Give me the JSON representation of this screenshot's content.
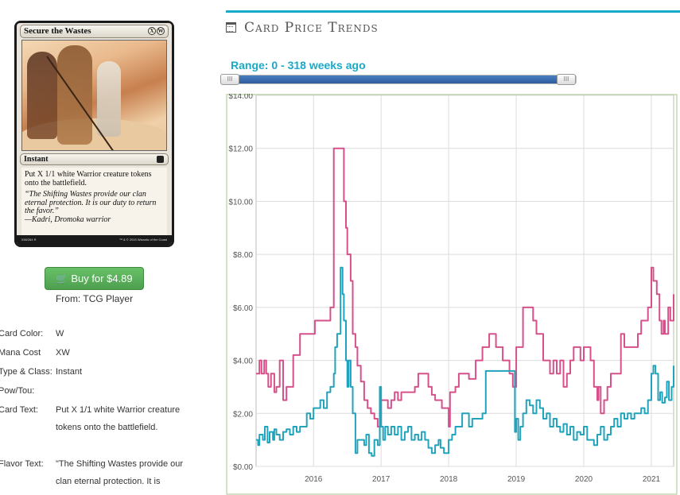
{
  "card": {
    "name": "Secure the Wastes",
    "mana_symbols": [
      "X",
      "W"
    ],
    "type_line": "Instant",
    "rules_text": "Put X 1/1 white Warrior creature tokens onto the battlefield.",
    "flavor_text": "“The Shifting Wastes provide our clan eternal protection. It is our duty to return the favor.”",
    "flavor_attribution": "—Kadri, Dromoka warrior",
    "collector_number": "036/264 R",
    "copyright": "™ & © 2015 Wizards of the Coast"
  },
  "buy": {
    "label": "Buy for $4.89",
    "from": "From: TCG Player"
  },
  "details": [
    {
      "label": "Card Color:",
      "value": "W"
    },
    {
      "label": "Mana Cost",
      "value": "XW"
    },
    {
      "label": "Type & Class:",
      "value": "Instant"
    },
    {
      "label": "Pow/Tou:",
      "value": ""
    },
    {
      "label": "Card Text:",
      "value": "Put X 1/1 white Warrior creature tokens onto the battlefield."
    },
    {
      "label": "Flavor Text:",
      "value": "\"The Shifting Wastes provide our clan eternal protection. It is"
    }
  ],
  "panel": {
    "title": "Card Price Trends",
    "title_icon": "calendar-icon",
    "range_label": "Range: 0 - 318 weeks ago",
    "slider_handle_glyph": "III",
    "slider": {
      "start_weeks": 0,
      "end_weeks": 318
    }
  },
  "colors": {
    "accent": "#1aa9c7",
    "buy_green": "#5cb85c",
    "series_pink": "#d6508a",
    "series_teal": "#21a3bc"
  },
  "chart_data": {
    "type": "line",
    "xlabel": "",
    "ylabel": "",
    "xlim": [
      2015.15,
      2021.33
    ],
    "ylim": [
      0,
      14
    ],
    "x_ticks": [
      "2016",
      "2017",
      "2018",
      "2019",
      "2020",
      "2021"
    ],
    "y_ticks": [
      "$0.00",
      "$2.00",
      "$4.00",
      "$6.00",
      "$8.00",
      "$10.00",
      "$12.00",
      "$14.00"
    ],
    "grid": true,
    "series": [
      {
        "color": "#d6508a",
        "x": [
          2015.15,
          2015.2,
          2015.23,
          2015.27,
          2015.3,
          2015.33,
          2015.37,
          2015.42,
          2015.45,
          2015.5,
          2015.55,
          2015.6,
          2015.65,
          2015.7,
          2015.8,
          2015.95,
          2016.02,
          2016.1,
          2016.18,
          2016.25,
          2016.3,
          2016.4,
          2016.45,
          2016.48,
          2016.5,
          2016.55,
          2016.58,
          2016.62,
          2016.65,
          2016.7,
          2016.75,
          2016.8,
          2016.85,
          2016.9,
          2016.95,
          2017.0,
          2017.05,
          2017.1,
          2017.15,
          2017.2,
          2017.25,
          2017.3,
          2017.35,
          2017.4,
          2017.5,
          2017.55,
          2017.6,
          2017.7,
          2017.75,
          2017.8,
          2017.9,
          2018.0,
          2018.02,
          2018.1,
          2018.15,
          2018.3,
          2018.4,
          2018.5,
          2018.6,
          2018.7,
          2018.8,
          2018.85,
          2018.9,
          2018.95,
          2019.0,
          2019.05,
          2019.1,
          2019.15,
          2019.2,
          2019.25,
          2019.3,
          2019.4,
          2019.5,
          2019.55,
          2019.6,
          2019.65,
          2019.7,
          2019.75,
          2019.8,
          2019.85,
          2019.9,
          2019.95,
          2020.0,
          2020.05,
          2020.1,
          2020.15,
          2020.2,
          2020.22,
          2020.25,
          2020.3,
          2020.35,
          2020.4,
          2020.5,
          2020.55,
          2020.6,
          2020.7,
          2020.8,
          2020.85,
          2020.9,
          2020.95,
          2021.0,
          2021.03,
          2021.08,
          2021.12,
          2021.15,
          2021.18,
          2021.2,
          2021.25,
          2021.28,
          2021.33
        ],
        "y": [
          3.5,
          4.0,
          3.5,
          4.0,
          3.5,
          3.0,
          3.5,
          2.8,
          3.0,
          4.0,
          2.5,
          3.0,
          3.0,
          4.2,
          5.0,
          5.0,
          5.5,
          5.5,
          5.5,
          6.0,
          12.0,
          12.0,
          10.0,
          9.0,
          8.0,
          7.0,
          5.0,
          4.5,
          3.8,
          3.2,
          2.5,
          2.2,
          2.0,
          1.8,
          1.5,
          2.5,
          2.5,
          2.2,
          2.5,
          2.8,
          2.5,
          2.8,
          2.8,
          2.8,
          3.0,
          3.5,
          3.5,
          3.0,
          2.7,
          2.5,
          2.2,
          1.5,
          2.8,
          3.0,
          3.5,
          3.3,
          4.0,
          4.5,
          5.0,
          4.5,
          4.0,
          4.0,
          3.5,
          3.0,
          4.5,
          4.5,
          6.0,
          6.0,
          6.0,
          5.5,
          5.0,
          4.0,
          3.5,
          4.0,
          3.5,
          4.0,
          3.0,
          3.5,
          4.0,
          4.5,
          4.5,
          4.0,
          4.5,
          4.5,
          4.0,
          3.0,
          2.5,
          3.0,
          2.0,
          2.5,
          3.0,
          3.5,
          3.5,
          5.0,
          4.5,
          4.5,
          5.0,
          5.5,
          5.5,
          6.0,
          7.5,
          7.0,
          6.5,
          5.5,
          5.0,
          5.5,
          5.0,
          6.0,
          5.5,
          6.5
        ]
      },
      {
        "color": "#21a3bc",
        "x": [
          2015.15,
          2015.18,
          2015.2,
          2015.25,
          2015.28,
          2015.32,
          2015.35,
          2015.4,
          2015.42,
          2015.45,
          2015.5,
          2015.55,
          2015.6,
          2015.65,
          2015.7,
          2015.75,
          2015.8,
          2015.85,
          2015.9,
          2015.95,
          2016.0,
          2016.05,
          2016.1,
          2016.15,
          2016.2,
          2016.25,
          2016.3,
          2016.32,
          2016.35,
          2016.4,
          2016.43,
          2016.45,
          2016.48,
          2016.5,
          2016.52,
          2016.55,
          2016.58,
          2016.62,
          2016.65,
          2016.7,
          2016.75,
          2016.78,
          2016.82,
          2016.86,
          2016.9,
          2016.95,
          2016.98,
          2017.0,
          2017.03,
          2017.06,
          2017.1,
          2017.15,
          2017.2,
          2017.25,
          2017.3,
          2017.35,
          2017.4,
          2017.45,
          2017.5,
          2017.55,
          2017.6,
          2017.65,
          2017.7,
          2017.75,
          2017.8,
          2017.85,
          2017.88,
          2017.93,
          2018.0,
          2018.05,
          2018.1,
          2018.2,
          2018.3,
          2018.35,
          2018.45,
          2018.5,
          2018.55,
          2018.98,
          2019.0,
          2019.03,
          2019.06,
          2019.1,
          2019.15,
          2019.2,
          2019.25,
          2019.3,
          2019.35,
          2019.4,
          2019.45,
          2019.5,
          2019.55,
          2019.6,
          2019.65,
          2019.7,
          2019.75,
          2019.8,
          2019.85,
          2019.9,
          2019.95,
          2020.0,
          2020.05,
          2020.1,
          2020.15,
          2020.2,
          2020.25,
          2020.3,
          2020.35,
          2020.4,
          2020.45,
          2020.5,
          2020.55,
          2020.6,
          2020.65,
          2020.7,
          2020.75,
          2020.8,
          2020.85,
          2020.9,
          2020.95,
          2021.0,
          2021.03,
          2021.06,
          2021.1,
          2021.13,
          2021.16,
          2021.2,
          2021.23,
          2021.26,
          2021.3,
          2021.33
        ],
        "y": [
          1.0,
          0.8,
          1.2,
          1.0,
          1.5,
          0.9,
          1.3,
          1.0,
          1.4,
          1.2,
          1.0,
          1.3,
          1.4,
          1.2,
          1.5,
          1.3,
          1.5,
          1.5,
          2.0,
          1.8,
          2.2,
          2.2,
          2.5,
          2.2,
          2.8,
          3.0,
          3.5,
          4.5,
          5.0,
          7.5,
          6.5,
          5.5,
          4.0,
          3.0,
          4.0,
          3.0,
          2.0,
          0.5,
          1.0,
          1.0,
          0.8,
          1.2,
          0.5,
          0.4,
          1.0,
          0.8,
          3.0,
          1.5,
          1.0,
          1.5,
          1.2,
          1.5,
          1.2,
          1.5,
          1.0,
          1.3,
          1.5,
          1.0,
          1.2,
          1.0,
          1.3,
          1.0,
          0.7,
          0.5,
          0.8,
          1.0,
          0.7,
          0.5,
          1.0,
          1.2,
          1.5,
          2.0,
          1.5,
          1.8,
          1.8,
          2.0,
          3.6,
          1.3,
          1.8,
          1.0,
          1.5,
          2.0,
          2.5,
          2.3,
          2.0,
          2.5,
          2.2,
          1.8,
          2.0,
          1.5,
          1.8,
          1.5,
          1.3,
          1.6,
          1.2,
          1.5,
          1.0,
          1.3,
          1.2,
          1.5,
          1.0,
          1.0,
          0.8,
          1.2,
          1.5,
          1.0,
          1.2,
          1.5,
          1.8,
          1.5,
          2.0,
          1.8,
          2.0,
          1.8,
          2.0,
          2.0,
          2.2,
          2.0,
          2.5,
          3.5,
          3.8,
          3.5,
          2.5,
          2.8,
          2.4,
          2.6,
          3.2,
          2.5,
          3.0,
          3.8
        ]
      }
    ]
  }
}
